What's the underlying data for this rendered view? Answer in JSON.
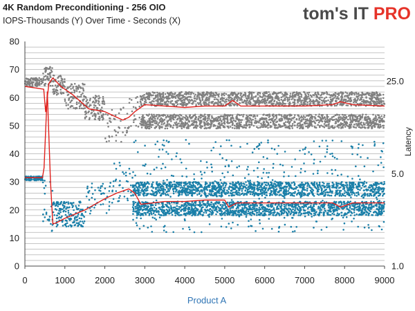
{
  "header": {
    "title": "4K Random Preconditioning - 256 OIO",
    "subtitle": "IOPS-Thousands (Y) Over Time - Seconds (X)"
  },
  "logo": {
    "text_main": "tom's IT ",
    "text_accent": "PRO"
  },
  "colors": {
    "iops_points": "#808080",
    "latency_points": "#1a7fa8",
    "trend_line": "#e0201c",
    "gridline": "#b0b0b0"
  },
  "chart_data": {
    "type": "scatter",
    "title": "4K Random Preconditioning - 256 OIO",
    "subtitle": "IOPS-Thousands (Y) Over Time - Seconds (X)",
    "xlabel": "Product  A",
    "ylabel": "",
    "y2label": "Latency",
    "xlim": [
      0,
      9000
    ],
    "ylim": [
      0,
      80
    ],
    "y2lim": [
      1.0,
      50.0
    ],
    "y2scale": "log",
    "xticks": [
      0,
      1000,
      2000,
      3000,
      4000,
      5000,
      6000,
      7000,
      8000,
      9000
    ],
    "yticks": [
      0,
      10,
      20,
      30,
      40,
      50,
      60,
      70,
      80
    ],
    "y2ticks": [
      1.0,
      5.0,
      25.0
    ],
    "y2ticklabels": [
      "1.0",
      "5.0",
      "25.0"
    ],
    "grid": true,
    "legend": "none",
    "series": [
      {
        "axis": "left",
        "style": "scatter",
        "color": "#808080",
        "bands": [
          {
            "x": [
              0,
              450
            ],
            "y": [
              64,
              67
            ]
          },
          {
            "x": [
              450,
              700
            ],
            "y": [
              64,
              71
            ]
          },
          {
            "x": [
              700,
              1000
            ],
            "y": [
              61,
              68
            ]
          },
          {
            "x": [
              1000,
              1500
            ],
            "y": [
              56,
              65
            ]
          },
          {
            "x": [
              1500,
              2000
            ],
            "y": [
              52,
              61
            ]
          },
          {
            "x": [
              2000,
              2600
            ],
            "y": [
              44,
              57
            ]
          },
          {
            "x": [
              2600,
              2900
            ],
            "y": [
              49,
              61
            ]
          },
          {
            "x": [
              2900,
              9000
            ],
            "y": [
              57,
              62
            ]
          },
          {
            "x": [
              2900,
              9000
            ],
            "y": [
              49,
              54
            ]
          }
        ]
      },
      {
        "axis": "left",
        "style": "scatter",
        "color": "#1a7fa8",
        "bands": [
          {
            "x": [
              0,
              450
            ],
            "y": [
              30.5,
              32
            ]
          },
          {
            "x": [
              450,
              700
            ],
            "y": [
              12,
              31
            ]
          },
          {
            "x": [
              700,
              1500
            ],
            "y": [
              14,
              23
            ]
          },
          {
            "x": [
              1500,
              2200
            ],
            "y": [
              18,
              30
            ]
          },
          {
            "x": [
              2200,
              2700
            ],
            "y": [
              22,
              37
            ]
          },
          {
            "x": [
              2700,
              9000
            ],
            "y": [
              18,
              23
            ]
          },
          {
            "x": [
              2700,
              9000
            ],
            "y": [
              25,
              30
            ]
          },
          {
            "x": [
              2700,
              9000
            ],
            "y": [
              12,
              45
            ]
          }
        ]
      },
      {
        "axis": "left",
        "style": "line",
        "color": "#e0201c",
        "x": [
          0,
          470,
          520,
          600,
          700,
          900,
          1200,
          1600,
          2000,
          2300,
          2450,
          2600,
          2750,
          3000,
          3500,
          4000,
          4500,
          5000,
          5200,
          5400,
          6000,
          7000,
          7700,
          7900,
          8200,
          9000
        ],
        "y": [
          64,
          63,
          55,
          65,
          67,
          64,
          61,
          56,
          55,
          53,
          52,
          53,
          55,
          57.5,
          57,
          56.5,
          57,
          57,
          59,
          57,
          57,
          57,
          57.5,
          58.5,
          57.5,
          57
        ]
      },
      {
        "axis": "left",
        "style": "line",
        "color": "#e0201c",
        "x": [
          0,
          440,
          480,
          560,
          640,
          700,
          800,
          1000,
          1500,
          2000,
          2300,
          2600,
          2750,
          2900,
          3200,
          3500,
          4000,
          4500,
          5000,
          5100,
          5300,
          5500,
          6000,
          7000,
          7700,
          7900,
          8200,
          9000
        ],
        "y": [
          31.5,
          31.5,
          35,
          62,
          30,
          15,
          15.5,
          17,
          20,
          24,
          26,
          27.5,
          26,
          22,
          22.5,
          23,
          23,
          23.5,
          23.5,
          21,
          22.5,
          22.5,
          22.5,
          22.5,
          22.5,
          21,
          22.5,
          22.5
        ]
      }
    ]
  }
}
